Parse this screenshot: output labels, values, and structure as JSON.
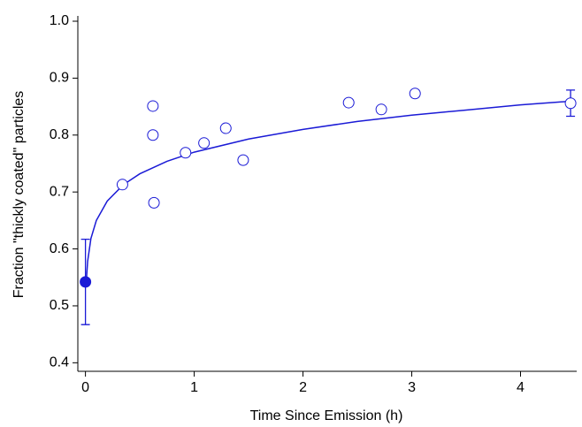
{
  "chart_data": {
    "type": "scatter",
    "x_label": "Time Since Emission (h)",
    "y_label": "Fraction \"thickly coated\" particles",
    "xlim": [
      -0.07,
      4.5
    ],
    "ylim": [
      0.385,
      1.0
    ],
    "xticks": [
      0,
      1,
      2,
      3,
      4
    ],
    "yticks": [
      0.4,
      0.5,
      0.6,
      0.7,
      0.8,
      0.9,
      {
        "value": 1,
        "label": "1.0"
      }
    ],
    "series": [
      {
        "style": "line",
        "color": "#1a1ad6",
        "x": [
          0.01,
          0.02,
          0.05,
          0.1,
          0.2,
          0.35,
          0.5,
          0.75,
          1,
          1.5,
          2,
          2.5,
          3,
          3.5,
          4,
          4.5
        ],
        "values": [
          0.549,
          0.578,
          0.618,
          0.65,
          0.684,
          0.713,
          0.732,
          0.754,
          0.77,
          0.793,
          0.81,
          0.824,
          0.835,
          0.844,
          0.853,
          0.86
        ]
      },
      {
        "style": "markers",
        "filled": true,
        "color": "#1a1ad6",
        "x": [
          0
        ],
        "values": [
          0.542
        ],
        "error": [
          0.075
        ]
      },
      {
        "style": "markers",
        "filled": false,
        "color": "#1a1ad6",
        "x": [
          0.34,
          0.62,
          0.62,
          0.63,
          0.92,
          1.09,
          1.29,
          1.45,
          2.42,
          2.72,
          3.03,
          4.46
        ],
        "values": [
          0.713,
          0.851,
          0.8,
          0.681,
          0.769,
          0.786,
          0.812,
          0.756,
          0.857,
          0.845,
          0.873,
          0.856
        ],
        "error": [
          null,
          null,
          null,
          null,
          null,
          null,
          null,
          null,
          null,
          null,
          null,
          0.023
        ]
      }
    ]
  }
}
